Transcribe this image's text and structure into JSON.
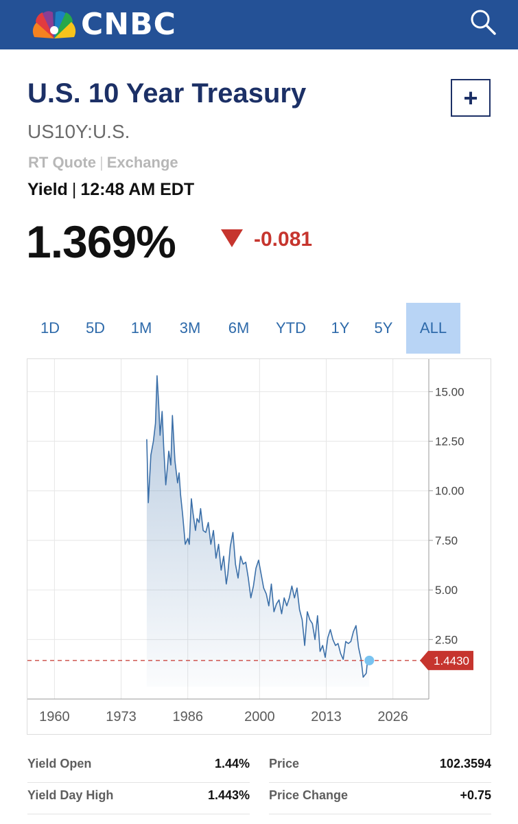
{
  "header": {
    "brand": "CNBC"
  },
  "quote": {
    "title": "U.S. 10 Year Treasury",
    "symbol": "US10Y:U.S.",
    "rt_label": "RT Quote",
    "rt_sep": "|",
    "exchange_label": "Exchange",
    "yield_label": "Yield",
    "yield_sep": "|",
    "time": "12:48 AM EDT",
    "price": "1.369%",
    "change": "-0.081",
    "add_label": "+"
  },
  "ranges": {
    "tabs": [
      "1D",
      "5D",
      "1M",
      "3M",
      "6M",
      "YTD",
      "1Y",
      "5Y",
      "ALL"
    ],
    "active": "ALL"
  },
  "chart_data": {
    "type": "area",
    "x_ticks": [
      "1960",
      "1973",
      "1986",
      "2000",
      "2013",
      "2026"
    ],
    "y_ticks": [
      "2.50",
      "5.00",
      "7.50",
      "10.00",
      "12.50",
      "15.00"
    ],
    "xlim": [
      1955,
      2033
    ],
    "ylim": [
      -0.5,
      16.5
    ],
    "grid": true,
    "last_value_label": "1.4430",
    "last_value": 1.443,
    "x": [
      1978.0,
      1978.3,
      1978.8,
      1979.3,
      1979.7,
      1980.0,
      1980.3,
      1980.6,
      1981.0,
      1981.3,
      1981.7,
      1982.0,
      1982.3,
      1982.7,
      1983.0,
      1983.5,
      1984.0,
      1984.3,
      1984.6,
      1985.0,
      1985.5,
      1986.0,
      1986.3,
      1986.7,
      1987.0,
      1987.5,
      1987.8,
      1988.2,
      1988.5,
      1989.0,
      1989.5,
      1990.0,
      1990.5,
      1991.0,
      1991.5,
      1992.0,
      1992.5,
      1993.0,
      1993.5,
      1993.8,
      1994.3,
      1994.8,
      1995.3,
      1995.8,
      1996.3,
      1996.8,
      1997.3,
      1997.8,
      1998.3,
      1998.8,
      1999.3,
      1999.8,
      2000.3,
      2000.8,
      2001.3,
      2001.8,
      2002.3,
      2002.8,
      2003.3,
      2003.8,
      2004.3,
      2004.8,
      2005.3,
      2005.8,
      2006.3,
      2006.8,
      2007.3,
      2007.8,
      2008.3,
      2008.8,
      2009.3,
      2009.8,
      2010.3,
      2010.8,
      2011.3,
      2011.8,
      2012.3,
      2012.8,
      2013.3,
      2013.8,
      2014.3,
      2014.8,
      2015.3,
      2015.8,
      2016.3,
      2016.8,
      2017.3,
      2017.8,
      2018.3,
      2018.8,
      2019.3,
      2019.8,
      2020.2,
      2020.5,
      2020.8,
      2021.1,
      2021.4
    ],
    "values": [
      12.6,
      9.4,
      11.8,
      12.5,
      13.4,
      15.8,
      14.5,
      12.8,
      14.0,
      12.2,
      10.3,
      11.1,
      12.0,
      11.3,
      13.8,
      11.5,
      10.4,
      10.9,
      9.8,
      8.8,
      7.3,
      7.6,
      7.3,
      9.6,
      8.9,
      8.0,
      8.6,
      8.4,
      9.1,
      8.0,
      7.9,
      8.4,
      7.3,
      8.0,
      6.6,
      7.3,
      6.0,
      6.7,
      5.3,
      5.8,
      7.2,
      7.9,
      6.3,
      5.6,
      6.7,
      6.3,
      6.4,
      5.6,
      4.6,
      5.2,
      6.1,
      6.5,
      5.8,
      5.1,
      4.8,
      4.2,
      5.3,
      3.9,
      4.3,
      4.5,
      3.8,
      4.6,
      4.2,
      4.6,
      5.2,
      4.6,
      5.1,
      4.0,
      3.5,
      2.2,
      3.9,
      3.5,
      3.3,
      2.5,
      3.7,
      1.9,
      2.2,
      1.6,
      2.6,
      3.0,
      2.5,
      2.2,
      2.3,
      1.8,
      1.5,
      2.4,
      2.3,
      2.4,
      2.9,
      3.2,
      2.1,
      1.5,
      0.6,
      0.7,
      0.8,
      1.6,
      1.44
    ]
  },
  "stats": [
    {
      "label": "Yield Open",
      "value": "1.44%"
    },
    {
      "label": "Price",
      "value": "102.3594"
    },
    {
      "label": "Yield Day High",
      "value": "1.443%"
    },
    {
      "label": "Price Change",
      "value": "+0.75"
    }
  ],
  "colors": {
    "header_bg": "#245196",
    "title": "#1c3066",
    "down": "#c6352e",
    "line": "#3b6fa8",
    "tab_active_bg": "#b8d4f5",
    "marker": "#79c3f0"
  }
}
